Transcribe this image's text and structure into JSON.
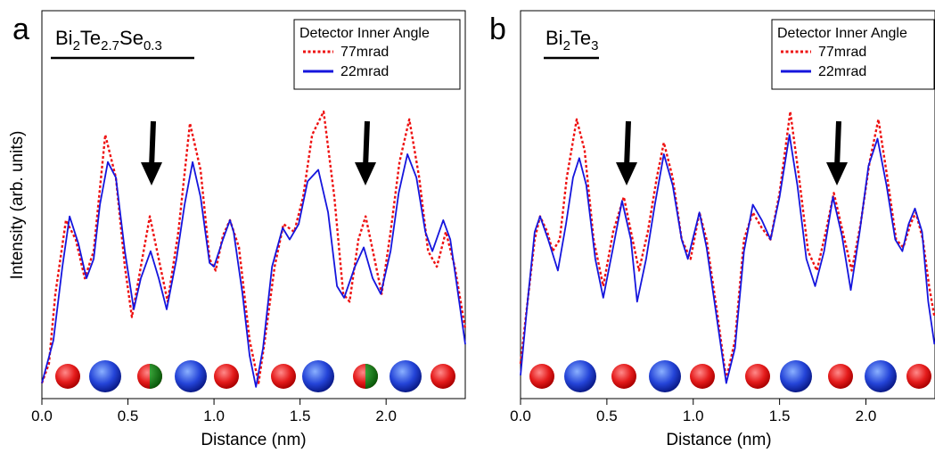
{
  "chart_data": [
    {
      "type": "line",
      "panel": "a",
      "title": [
        {
          "text": "Bi"
        },
        {
          "text": "2",
          "sub": true
        },
        {
          "text": "Te"
        },
        {
          "text": "2.7",
          "sub": true
        },
        {
          "text": "Se"
        },
        {
          "text": "0.3",
          "sub": true
        }
      ],
      "x_label": "Distance (nm)",
      "y_label": "Intensity (arb. units)",
      "legend_title": "Detector Inner Angle",
      "xlim": [
        0,
        2.46
      ],
      "ylim": [
        0,
        1
      ],
      "xticks": [
        {
          "value": 0,
          "label": "0.0"
        },
        0.5,
        {
          "value": 1,
          "label": "1.0"
        },
        1.5,
        {
          "value": 2,
          "label": "2.0"
        }
      ],
      "series": [
        {
          "name": "77mrad",
          "color": "#ee1111",
          "dashed": true,
          "x": [
            0,
            0.041,
            0.078,
            0.14,
            0.197,
            0.249,
            0.301,
            0.368,
            0.43,
            0.482,
            0.523,
            0.575,
            0.627,
            0.679,
            0.731,
            0.793,
            0.86,
            0.922,
            0.974,
            1.01,
            1.052,
            1.093,
            1.145,
            1.207,
            1.259,
            1.295,
            1.352,
            1.404,
            1.466,
            1.518,
            1.57,
            1.637,
            1.699,
            1.751,
            1.788,
            1.839,
            1.881,
            1.933,
            1.974,
            2.026,
            2.078,
            2.135,
            2.192,
            2.244,
            2.295,
            2.347,
            2.399,
            2.46
          ],
          "values": [
            0.04,
            0.09,
            0.27,
            0.46,
            0.41,
            0.31,
            0.38,
            0.68,
            0.57,
            0.34,
            0.21,
            0.34,
            0.47,
            0.36,
            0.25,
            0.43,
            0.71,
            0.59,
            0.36,
            0.33,
            0.42,
            0.46,
            0.39,
            0.15,
            0.04,
            0.15,
            0.34,
            0.45,
            0.43,
            0.52,
            0.68,
            0.74,
            0.52,
            0.27,
            0.25,
            0.41,
            0.47,
            0.36,
            0.27,
            0.43,
            0.61,
            0.72,
            0.57,
            0.38,
            0.34,
            0.43,
            0.34,
            0.18
          ]
        },
        {
          "name": "22mrad",
          "color": "#1515dd",
          "dashed": false,
          "x": [
            0,
            0.067,
            0.119,
            0.161,
            0.212,
            0.259,
            0.301,
            0.337,
            0.383,
            0.43,
            0.482,
            0.534,
            0.575,
            0.632,
            0.679,
            0.725,
            0.782,
            0.829,
            0.876,
            0.922,
            0.974,
            1.0,
            1.052,
            1.093,
            1.114,
            1.166,
            1.207,
            1.244,
            1.285,
            1.337,
            1.399,
            1.44,
            1.492,
            1.544,
            1.606,
            1.663,
            1.715,
            1.756,
            1.819,
            1.87,
            1.922,
            1.969,
            2.026,
            2.073,
            2.124,
            2.176,
            2.228,
            2.269,
            2.332,
            2.373,
            2.425,
            2.46
          ],
          "values": [
            0.04,
            0.15,
            0.34,
            0.47,
            0.4,
            0.31,
            0.36,
            0.5,
            0.61,
            0.57,
            0.38,
            0.23,
            0.31,
            0.38,
            0.31,
            0.23,
            0.36,
            0.5,
            0.61,
            0.52,
            0.35,
            0.34,
            0.41,
            0.46,
            0.43,
            0.27,
            0.11,
            0.03,
            0.13,
            0.34,
            0.44,
            0.41,
            0.45,
            0.56,
            0.59,
            0.48,
            0.29,
            0.26,
            0.34,
            0.39,
            0.31,
            0.27,
            0.38,
            0.53,
            0.63,
            0.57,
            0.43,
            0.38,
            0.46,
            0.41,
            0.25,
            0.14
          ]
        }
      ]
    },
    {
      "type": "line",
      "panel": "b",
      "title": [
        {
          "text": "Bi"
        },
        {
          "text": "2",
          "sub": true
        },
        {
          "text": "Te"
        },
        {
          "text": "3",
          "sub": true
        }
      ],
      "x_label": "Distance (nm)",
      "legend_title": "Detector Inner Angle",
      "xlim": [
        0,
        2.4
      ],
      "ylim": [
        0,
        1
      ],
      "xticks": [
        {
          "value": 0,
          "label": "0.0"
        },
        0.5,
        {
          "value": 1,
          "label": "1.0"
        },
        1.5,
        {
          "value": 2,
          "label": "2.0"
        }
      ],
      "series": [
        {
          "name": "77mrad",
          "color": "#ee1111",
          "dashed": true,
          "x": [
            0,
            0.041,
            0.082,
            0.113,
            0.155,
            0.186,
            0.227,
            0.268,
            0.325,
            0.371,
            0.423,
            0.479,
            0.536,
            0.598,
            0.649,
            0.686,
            0.737,
            0.789,
            0.83,
            0.881,
            0.933,
            0.985,
            1.036,
            1.077,
            1.139,
            1.191,
            1.242,
            1.294,
            1.345,
            1.397,
            1.448,
            1.5,
            1.562,
            1.613,
            1.665,
            1.716,
            1.768,
            1.814,
            1.866,
            1.918,
            1.969,
            2.021,
            2.072,
            2.124,
            2.175,
            2.216,
            2.258,
            2.289,
            2.33,
            2.366,
            2.397
          ],
          "values": [
            0.09,
            0.25,
            0.41,
            0.47,
            0.43,
            0.38,
            0.41,
            0.57,
            0.72,
            0.64,
            0.41,
            0.29,
            0.43,
            0.52,
            0.41,
            0.33,
            0.43,
            0.57,
            0.66,
            0.57,
            0.41,
            0.36,
            0.48,
            0.41,
            0.22,
            0.05,
            0.15,
            0.41,
            0.48,
            0.44,
            0.41,
            0.53,
            0.74,
            0.57,
            0.38,
            0.33,
            0.43,
            0.53,
            0.43,
            0.33,
            0.45,
            0.61,
            0.72,
            0.57,
            0.41,
            0.39,
            0.45,
            0.48,
            0.41,
            0.29,
            0.21
          ]
        },
        {
          "name": "22mrad",
          "color": "#1515dd",
          "dashed": false,
          "x": [
            0,
            0.041,
            0.082,
            0.113,
            0.16,
            0.216,
            0.263,
            0.304,
            0.34,
            0.381,
            0.433,
            0.479,
            0.536,
            0.588,
            0.639,
            0.675,
            0.727,
            0.778,
            0.83,
            0.881,
            0.933,
            0.969,
            1.036,
            1.077,
            1.139,
            1.191,
            1.242,
            1.294,
            1.345,
            1.397,
            1.448,
            1.5,
            1.557,
            1.603,
            1.655,
            1.706,
            1.758,
            1.809,
            1.861,
            1.912,
            1.964,
            2.015,
            2.067,
            2.119,
            2.17,
            2.211,
            2.247,
            2.284,
            2.325,
            2.361,
            2.397
          ],
          "values": [
            0.06,
            0.25,
            0.43,
            0.47,
            0.41,
            0.33,
            0.45,
            0.57,
            0.62,
            0.55,
            0.36,
            0.26,
            0.39,
            0.51,
            0.41,
            0.25,
            0.36,
            0.5,
            0.63,
            0.55,
            0.41,
            0.36,
            0.48,
            0.39,
            0.2,
            0.04,
            0.13,
            0.38,
            0.5,
            0.46,
            0.41,
            0.52,
            0.68,
            0.55,
            0.36,
            0.29,
            0.38,
            0.52,
            0.42,
            0.28,
            0.43,
            0.6,
            0.67,
            0.55,
            0.41,
            0.38,
            0.45,
            0.49,
            0.43,
            0.25,
            0.14
          ]
        }
      ]
    }
  ]
}
